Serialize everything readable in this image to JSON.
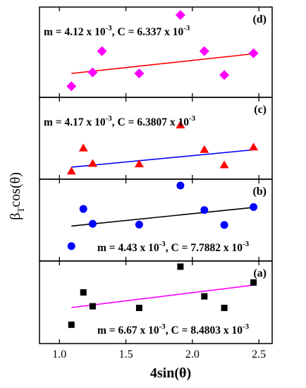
{
  "chart_data": {
    "type": "scatter",
    "layout": "stacked panels sharing x axis",
    "xlabel": "4sin(θ)",
    "ylabel_main": "β",
    "ylabel_sub": "T",
    "ylabel_rest": "cos(θ)",
    "xlim": [
      0.85,
      2.6
    ],
    "xticks": [
      1.0,
      1.5,
      2.0,
      2.5
    ],
    "xtick_labels": [
      "1.0",
      "1.5",
      "2.0",
      "2.5"
    ],
    "panels": [
      {
        "label": "(d)",
        "marker": "diamond",
        "marker_color": "#ff00ff",
        "line_color": "#ff0000",
        "eq_m": "m = 4.12 x 10",
        "eq_m_exp": "-3",
        "eq_c": ", C = 6.337 x 10",
        "eq_c_exp": "-3",
        "annotation_position": "top-left",
        "x": [
          1.09,
          1.25,
          1.32,
          1.6,
          1.91,
          2.09,
          2.24,
          2.46
        ],
        "y": [
          0.06,
          0.32,
          0.72,
          0.3,
          1.4,
          0.72,
          0.27,
          0.68
        ],
        "fit_x": [
          1.09,
          2.46
        ],
        "fit_y": [
          0.3,
          0.67
        ],
        "ylim": [
          -0.15,
          1.55
        ]
      },
      {
        "label": "(c)",
        "marker": "triangle",
        "marker_color": "#ff0000",
        "line_color": "#0000ff",
        "eq_m": "m = 4.17 x 10",
        "eq_m_exp": "-3",
        "eq_c": ", C = 6.3807 x 10",
        "eq_c_exp": "-3",
        "annotation_position": "top-left",
        "x": [
          1.09,
          1.18,
          1.25,
          1.6,
          1.91,
          2.09,
          2.24,
          2.46
        ],
        "y": [
          0.02,
          0.5,
          0.18,
          0.17,
          0.98,
          0.47,
          0.15,
          0.52
        ],
        "fit_x": [
          1.09,
          2.46
        ],
        "fit_y": [
          0.1,
          0.46
        ],
        "ylim": [
          -0.15,
          1.55
        ]
      },
      {
        "label": "(b)",
        "marker": "circle",
        "marker_color": "#0000ff",
        "line_color": "#000000",
        "eq_m": "m = 4.43 x 10",
        "eq_m_exp": "-3",
        "eq_c": ", C = 7.7882 x 10",
        "eq_c_exp": "-3",
        "annotation_position": "bottom-right",
        "x": [
          1.09,
          1.18,
          1.25,
          1.6,
          1.91,
          2.09,
          2.24,
          2.46
        ],
        "y": [
          -0.05,
          0.95,
          0.55,
          0.53,
          1.58,
          0.92,
          0.52,
          1.0
        ],
        "fit_x": [
          1.09,
          2.46
        ],
        "fit_y": [
          0.49,
          0.99
        ],
        "ylim": [
          -0.45,
          1.75
        ]
      },
      {
        "label": "(a)",
        "marker": "square",
        "marker_color": "#000000",
        "line_color": "#ff00ff",
        "eq_m": "m = 6.67 x 10",
        "eq_m_exp": "-3",
        "eq_c": ", C = 8.4803 x 10",
        "eq_c_exp": "-3",
        "annotation_position": "bottom-right",
        "x": [
          1.09,
          1.18,
          1.25,
          1.6,
          1.91,
          2.09,
          2.24,
          2.46
        ],
        "y": [
          0.12,
          1.1,
          0.68,
          0.63,
          1.88,
          0.98,
          0.63,
          1.4
        ],
        "fit_x": [
          1.09,
          2.46
        ],
        "fit_y": [
          0.64,
          1.32
        ],
        "ylim": [
          -0.45,
          2.05
        ]
      }
    ]
  }
}
